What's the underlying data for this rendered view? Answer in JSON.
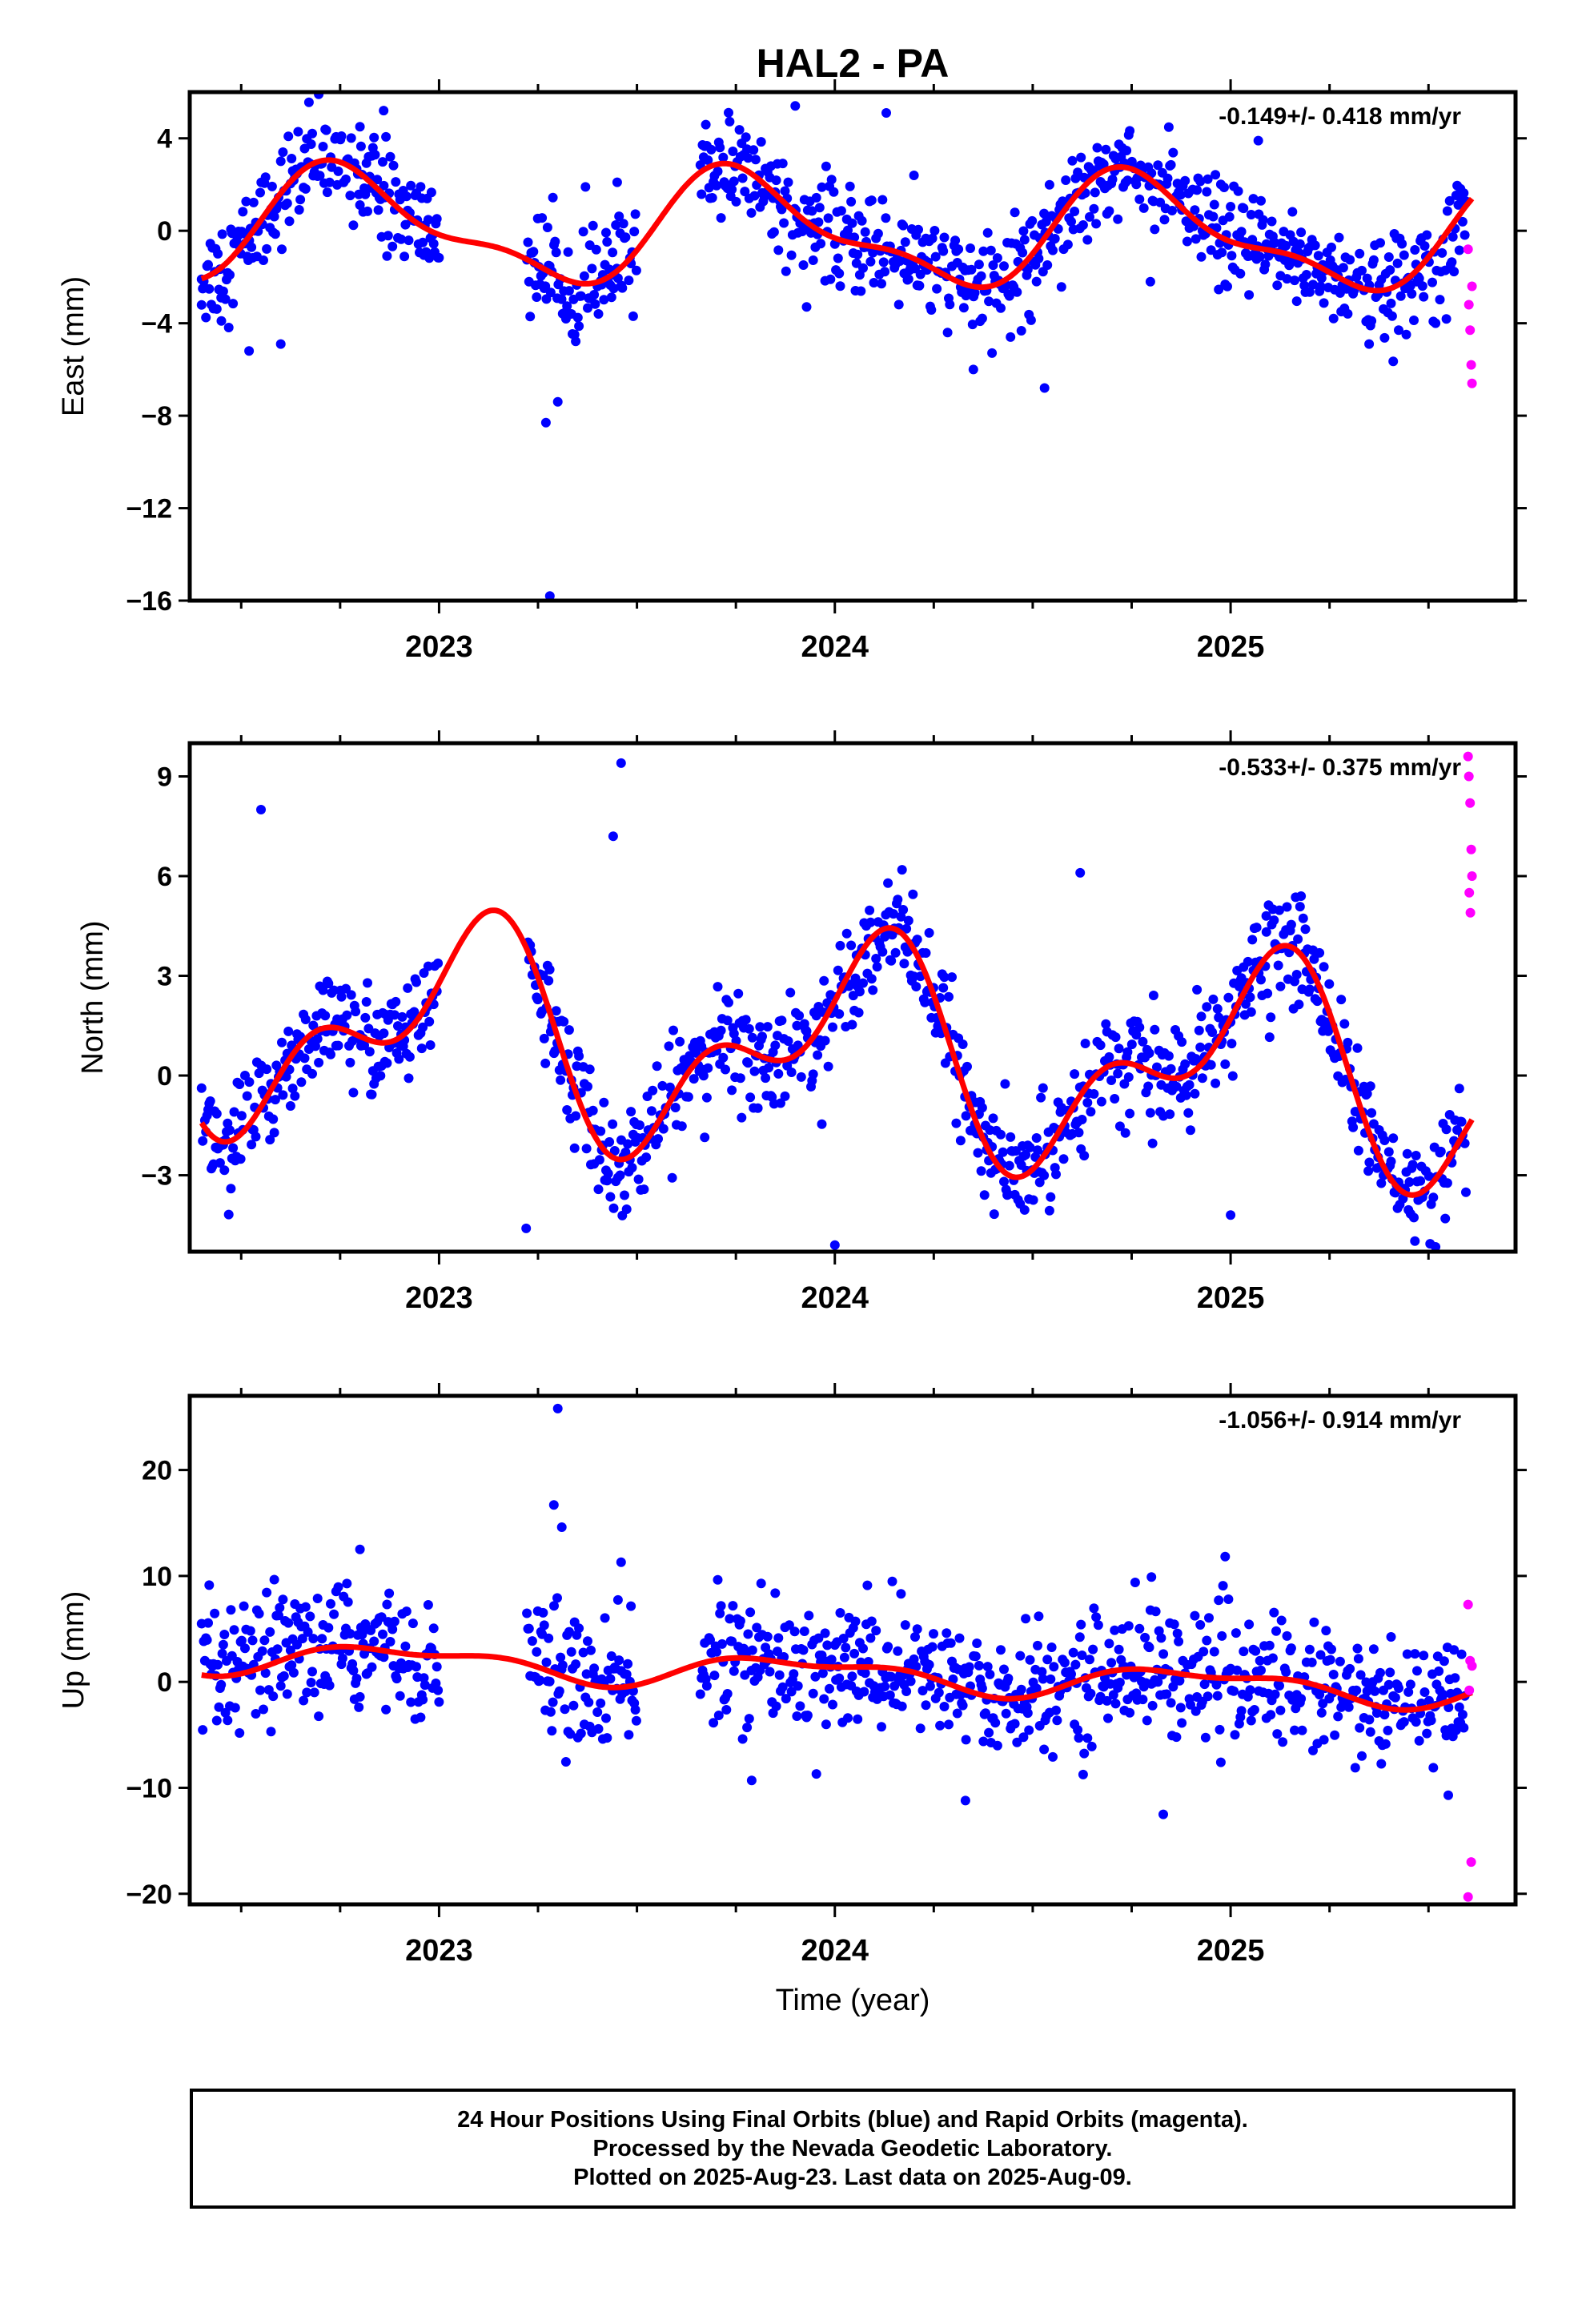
{
  "title": "HAL2 - PA",
  "colors": {
    "final": "#0000ff",
    "rapid": "#ff00ff",
    "model": "#ff0000",
    "frame": "#000000"
  },
  "xlabel": "Time (year)",
  "x_ticks": [
    "2023",
    "2024",
    "2025"
  ],
  "chart_data": [
    {
      "type": "scatter",
      "name": "east",
      "ylabel": "East (mm)",
      "rate_label": "-0.149+/- 0.418 mm/yr",
      "xlim": [
        2022.37,
        2025.72
      ],
      "ylim": [
        -16,
        6
      ],
      "y_ticks": [
        4,
        0,
        -4,
        -8,
        -12,
        -16
      ],
      "y_tick_labels": [
        "4",
        "0",
        "−4",
        "−8",
        "−12",
        "−16"
      ],
      "grid": false,
      "seasonal": {
        "base": 0,
        "slope": -0.149,
        "a1s": -2.2,
        "a1c": 0.3,
        "a2s": 0.6,
        "a2c": -0.6,
        "noise": 1.1
      },
      "gaps": [
        [
          2023.0,
          2023.22
        ],
        [
          2023.5,
          2023.66
        ]
      ],
      "final_points_sample": [
        [
          2022.4,
          -2.1
        ],
        [
          2022.45,
          -3.9
        ],
        [
          2022.52,
          -5.2
        ],
        [
          2022.6,
          -4.9
        ],
        [
          2022.8,
          4.5
        ],
        [
          2022.86,
          5.2
        ],
        [
          2023.27,
          -8.3
        ],
        [
          2023.28,
          -15.8
        ],
        [
          2023.3,
          -7.4
        ],
        [
          2023.45,
          2.1
        ],
        [
          2023.9,
          5.4
        ],
        [
          2024.13,
          5.1
        ],
        [
          2024.35,
          -6.0
        ],
        [
          2024.53,
          -6.8
        ],
        [
          2025.07,
          3.9
        ],
        [
          2025.35,
          -4.9
        ]
      ],
      "rapid_points": [
        [
          2025.6,
          -0.8
        ],
        [
          2025.61,
          -2.4
        ],
        [
          2025.602,
          -3.2
        ],
        [
          2025.605,
          -4.3
        ],
        [
          2025.608,
          -5.8
        ],
        [
          2025.61,
          -6.6
        ]
      ]
    },
    {
      "type": "scatter",
      "name": "north",
      "ylabel": "North (mm)",
      "rate_label": "-0.533+/- 0.375 mm/yr",
      "xlim": [
        2022.37,
        2025.72
      ],
      "ylim": [
        -5.3,
        10
      ],
      "y_ticks": [
        9,
        6,
        3,
        0,
        -3
      ],
      "y_tick_labels": [
        "9",
        "6",
        "3",
        "0",
        "−3"
      ],
      "grid": false,
      "seasonal": {
        "base": 0.8,
        "slope": -0.533,
        "a1s": 0.9,
        "a1c": 2.4,
        "a2s": 1.4,
        "a2c": -0.9,
        "noise": 0.8
      },
      "gaps": [
        [
          2023.0,
          2023.22
        ]
      ],
      "final_points_sample": [
        [
          2022.55,
          8.0
        ],
        [
          2023.22,
          -4.6
        ],
        [
          2023.46,
          9.4
        ],
        [
          2023.44,
          7.2
        ],
        [
          2024.0,
          -5.1
        ],
        [
          2024.62,
          6.1
        ],
        [
          2025.09,
          4.8
        ],
        [
          2025.0,
          -4.2
        ]
      ],
      "rapid_points": [
        [
          2025.6,
          9.6
        ],
        [
          2025.602,
          9.0
        ],
        [
          2025.605,
          8.2
        ],
        [
          2025.608,
          6.8
        ],
        [
          2025.61,
          6.0
        ],
        [
          2025.603,
          5.5
        ],
        [
          2025.606,
          4.9
        ]
      ]
    },
    {
      "type": "scatter",
      "name": "up",
      "ylabel": "Up (mm)",
      "rate_label": "-1.056+/- 0.914 mm/yr",
      "xlim": [
        2022.37,
        2025.72
      ],
      "ylim": [
        -21,
        27
      ],
      "y_ticks": [
        20,
        10,
        0,
        -10,
        -20
      ],
      "y_tick_labels": [
        "20",
        "10",
        "0",
        "−10",
        "−20"
      ],
      "grid": false,
      "seasonal": {
        "base": 0.9,
        "slope": -1.056,
        "a1s": -0.7,
        "a1c": 1.1,
        "a2s": 0.4,
        "a2c": -0.5,
        "noise": 3.0
      },
      "gaps": [
        [
          2023.0,
          2023.22
        ],
        [
          2023.5,
          2023.66
        ]
      ],
      "final_points_sample": [
        [
          2022.8,
          12.5
        ],
        [
          2023.3,
          25.8
        ],
        [
          2023.29,
          16.7
        ],
        [
          2023.31,
          14.6
        ],
        [
          2023.46,
          11.3
        ],
        [
          2023.79,
          -9.3
        ],
        [
          2024.33,
          -11.2
        ],
        [
          2024.8,
          9.9
        ],
        [
          2024.83,
          -12.5
        ],
        [
          2025.55,
          -10.7
        ]
      ],
      "rapid_points": [
        [
          2025.6,
          7.3
        ],
        [
          2025.605,
          2.0
        ],
        [
          2025.61,
          1.5
        ],
        [
          2025.603,
          -0.8
        ],
        [
          2025.608,
          -17.0
        ],
        [
          2025.6,
          -20.3
        ]
      ]
    }
  ],
  "footer": {
    "line1": "24 Hour Positions Using Final Orbits (blue) and Rapid Orbits (magenta).",
    "line2": "Processed by the Nevada Geodetic Laboratory.",
    "line3": "Plotted on 2025-Aug-23. Last data on 2025-Aug-09."
  }
}
